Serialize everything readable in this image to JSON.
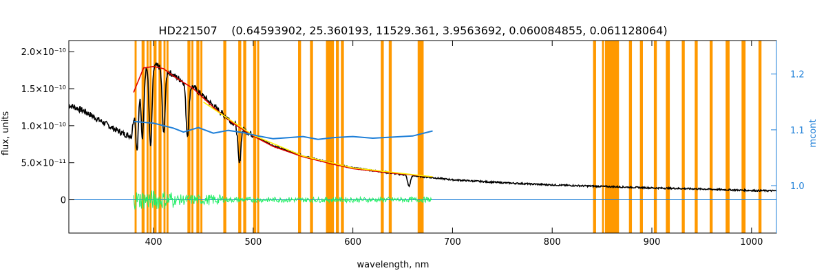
{
  "chart_data": {
    "type": "line",
    "title": "HD221507    (0.64593902, 25.360193, 11529.361, 3.9563692, 0.060084855, 0.061128064)",
    "xlabel": "wavelength, nm",
    "ylabel": "flux, units",
    "y2label": "mcont",
    "xlim": [
      315,
      1025
    ],
    "ylim": [
      -4.5e-11,
      2.15e-10
    ],
    "y2lim": [
      0.915,
      1.26
    ],
    "x_ticks": [
      {
        "v": 400,
        "label": "400"
      },
      {
        "v": 500,
        "label": "500"
      },
      {
        "v": 600,
        "label": "600"
      },
      {
        "v": 700,
        "label": "700"
      },
      {
        "v": 800,
        "label": "800"
      },
      {
        "v": 900,
        "label": "900"
      },
      {
        "v": 1000,
        "label": "1000"
      }
    ],
    "y_ticks": [
      {
        "v": 0,
        "label": "0"
      },
      {
        "v": 5e-11,
        "label": "5.0×10⁻¹¹"
      },
      {
        "v": 1e-10,
        "label": "1.0×10⁻¹⁰"
      },
      {
        "v": 1.5e-10,
        "label": "1.5×10⁻¹⁰"
      },
      {
        "v": 2e-10,
        "label": "2.0×10⁻¹⁰"
      }
    ],
    "y2_ticks": [
      {
        "v": 1.0,
        "label": "1.0"
      },
      {
        "v": 1.1,
        "label": "1.1"
      },
      {
        "v": 1.2,
        "label": "1.2"
      }
    ],
    "masked_regions": [
      [
        381,
        383
      ],
      [
        388,
        391
      ],
      [
        393,
        395
      ],
      [
        396,
        398
      ],
      [
        400,
        403
      ],
      [
        405,
        408
      ],
      [
        410,
        412
      ],
      [
        413,
        415
      ],
      [
        434,
        437
      ],
      [
        438,
        440
      ],
      [
        443,
        446
      ],
      [
        447,
        449
      ],
      [
        470,
        473
      ],
      [
        485,
        488
      ],
      [
        490,
        493
      ],
      [
        500,
        503
      ],
      [
        504,
        506
      ],
      [
        545,
        548
      ],
      [
        557,
        560
      ],
      [
        573,
        581
      ],
      [
        583,
        586
      ],
      [
        588,
        591
      ],
      [
        628,
        631
      ],
      [
        636,
        639
      ],
      [
        665,
        671
      ],
      [
        841,
        844
      ],
      [
        850,
        852
      ],
      [
        853,
        867
      ],
      [
        877,
        880
      ],
      [
        888,
        891
      ],
      [
        902,
        905
      ],
      [
        914,
        918
      ],
      [
        930,
        933
      ],
      [
        943,
        946
      ],
      [
        958,
        961
      ],
      [
        974,
        978
      ],
      [
        990,
        994
      ],
      [
        1007,
        1010
      ]
    ],
    "series": [
      {
        "color": "#000000",
        "points": [
          [
            315,
            1.28e-10
          ],
          [
            330,
            1.2e-10
          ],
          [
            345,
            1.08e-10
          ],
          [
            360,
            9.6e-11
          ],
          [
            370,
            8.9e-11
          ],
          [
            378,
            8.6e-11
          ],
          [
            382,
            1.4e-10
          ],
          [
            390,
            1.8e-10
          ],
          [
            400,
            1.82e-10
          ],
          [
            410,
            1.78e-10
          ],
          [
            420,
            1.68e-10
          ],
          [
            440,
            1.52e-10
          ],
          [
            460,
            1.27e-10
          ],
          [
            480,
            1.04e-10
          ],
          [
            500,
            8.7e-11
          ],
          [
            520,
            7.3e-11
          ],
          [
            550,
            5.9e-11
          ],
          [
            580,
            4.9e-11
          ],
          [
            600,
            4.3e-11
          ],
          [
            650,
            3.4e-11
          ],
          [
            700,
            2.7e-11
          ],
          [
            750,
            2.3e-11
          ],
          [
            800,
            2e-11
          ],
          [
            850,
            1.8e-11
          ],
          [
            900,
            1.6e-11
          ],
          [
            950,
            1.45e-11
          ],
          [
            1000,
            1.25e-11
          ],
          [
            1025,
            1.2e-11
          ]
        ],
        "absorption_lines": [
          {
            "x": 383.5,
            "depth": 8e-11
          },
          {
            "x": 388.9,
            "depth": 9e-11
          },
          {
            "x": 397.0,
            "depth": 1.1e-10
          },
          {
            "x": 410.2,
            "depth": 9e-11
          },
          {
            "x": 434.0,
            "depth": 7e-11
          },
          {
            "x": 486.1,
            "depth": 5e-11
          },
          {
            "x": 656.3,
            "depth": 1.5e-11
          }
        ]
      },
      {
        "color": "#e00000",
        "points": [
          [
            380,
            1.45e-10
          ],
          [
            390,
            1.78e-10
          ],
          [
            400,
            1.8e-10
          ],
          [
            410,
            1.77e-10
          ],
          [
            420,
            1.67e-10
          ],
          [
            440,
            1.5e-10
          ],
          [
            460,
            1.25e-10
          ],
          [
            480,
            1.03e-10
          ],
          [
            500,
            8.6e-11
          ],
          [
            520,
            7.2e-11
          ],
          [
            550,
            5.8e-11
          ],
          [
            580,
            4.8e-11
          ],
          [
            600,
            4.2e-11
          ],
          [
            640,
            3.6e-11
          ],
          [
            680,
            3.1e-11
          ]
        ]
      },
      {
        "color": "#ffee00",
        "points": [
          [
            450,
            1.32e-10
          ],
          [
            470,
            1.14e-10
          ],
          [
            500,
            8.7e-11
          ],
          [
            550,
            5.9e-11
          ],
          [
            600,
            4.3e-11
          ],
          [
            680,
            3.1e-11
          ]
        ]
      },
      {
        "color": "#1e7fd8",
        "axis": "right",
        "points": [
          [
            380,
            1.115
          ],
          [
            400,
            1.112
          ],
          [
            420,
            1.103
          ],
          [
            430,
            1.096
          ],
          [
            445,
            1.104
          ],
          [
            460,
            1.094
          ],
          [
            475,
            1.099
          ],
          [
            490,
            1.095
          ],
          [
            505,
            1.089
          ],
          [
            520,
            1.084
          ],
          [
            535,
            1.086
          ],
          [
            550,
            1.088
          ],
          [
            565,
            1.083
          ],
          [
            580,
            1.086
          ],
          [
            600,
            1.088
          ],
          [
            620,
            1.085
          ],
          [
            640,
            1.087
          ],
          [
            660,
            1.089
          ],
          [
            680,
            1.098
          ]
        ]
      },
      {
        "color": "#22ee66",
        "residuals": true,
        "x_range": [
          380,
          680
        ],
        "amplitude": 6e-12
      }
    ]
  }
}
